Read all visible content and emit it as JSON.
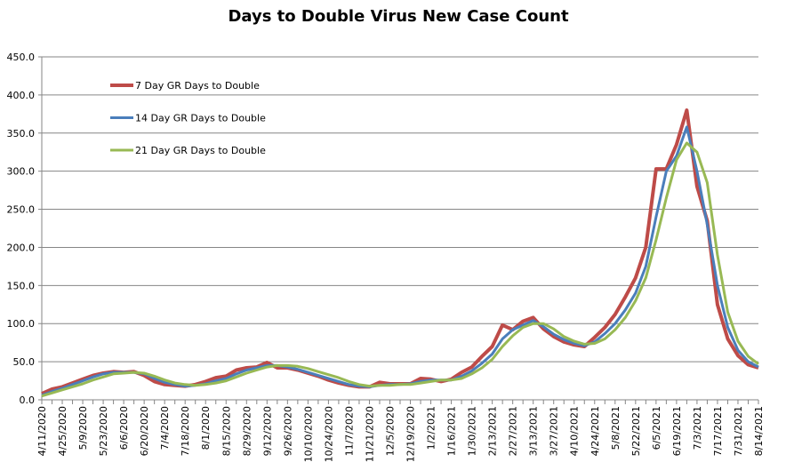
{
  "chart_data": {
    "type": "line",
    "title": "Days to Double Virus New Case Count",
    "xlabel": "",
    "ylabel": "",
    "ylim": [
      0,
      450
    ],
    "yticks": [
      "0.0",
      "50.0",
      "100.0",
      "150.0",
      "200.0",
      "250.0",
      "300.0",
      "350.0",
      "400.0",
      "450.0"
    ],
    "grid": "horizontal",
    "legend_placement": "top-left",
    "x": [
      "4/11/2020",
      "4/18/2020",
      "4/25/2020",
      "5/2/2020",
      "5/9/2020",
      "5/16/2020",
      "5/23/2020",
      "5/30/2020",
      "6/6/2020",
      "6/13/2020",
      "6/20/2020",
      "6/27/2020",
      "7/4/2020",
      "7/11/2020",
      "7/18/2020",
      "7/25/2020",
      "8/1/2020",
      "8/8/2020",
      "8/15/2020",
      "8/22/2020",
      "8/29/2020",
      "9/5/2020",
      "9/12/2020",
      "9/19/2020",
      "9/26/2020",
      "10/3/2020",
      "10/10/2020",
      "10/17/2020",
      "10/24/2020",
      "10/31/2020",
      "11/7/2020",
      "11/14/2020",
      "11/21/2020",
      "11/28/2020",
      "12/5/2020",
      "12/12/2020",
      "12/19/2020",
      "12/26/2020",
      "1/2/2021",
      "1/9/2021",
      "1/16/2021",
      "1/23/2021",
      "1/30/2021",
      "2/6/2021",
      "2/13/2021",
      "2/20/2021",
      "2/27/2021",
      "3/6/2021",
      "3/13/2021",
      "3/20/2021",
      "3/27/2021",
      "4/3/2021",
      "4/10/2021",
      "4/17/2021",
      "4/24/2021",
      "5/1/2021",
      "5/8/2021",
      "5/15/2021",
      "5/22/2021",
      "5/29/2021",
      "6/5/2021",
      "6/12/2021",
      "6/19/2021",
      "6/26/2021",
      "7/3/2021",
      "7/10/2021",
      "7/17/2021",
      "7/24/2021",
      "7/31/2021",
      "8/7/2021",
      "8/14/2021"
    ],
    "xtick_labels": [
      "4/11/2020",
      "4/25/2020",
      "5/9/2020",
      "5/23/2020",
      "6/6/2020",
      "6/20/2020",
      "7/4/2020",
      "7/18/2020",
      "8/1/2020",
      "8/15/2020",
      "8/29/2020",
      "9/12/2020",
      "9/26/2020",
      "10/10/2020",
      "10/24/2020",
      "11/7/2020",
      "11/21/2020",
      "12/5/2020",
      "12/19/2020",
      "1/2/2021",
      "1/16/2021",
      "1/30/2021",
      "2/13/2021",
      "2/27/2021",
      "3/13/2021",
      "3/27/2021",
      "4/10/2021",
      "4/24/2021",
      "5/8/2021",
      "5/22/2021",
      "6/5/2021",
      "6/19/2021",
      "7/3/2021",
      "7/17/2021",
      "7/31/2021",
      "8/14/2021"
    ],
    "series": [
      {
        "name": "7 Day GR Days to Double",
        "color": "#be4b48",
        "values": [
          8,
          14,
          17,
          22,
          27,
          32,
          35,
          37,
          36,
          37,
          32,
          24,
          20,
          19,
          18,
          20,
          24,
          29,
          31,
          39,
          42,
          43,
          49,
          42,
          42,
          39,
          35,
          31,
          26,
          22,
          19,
          17,
          17,
          23,
          21,
          21,
          21,
          28,
          27,
          24,
          27,
          36,
          43,
          57,
          70,
          98,
          92,
          103,
          108,
          93,
          83,
          76,
          72,
          70,
          82,
          95,
          112,
          135,
          160,
          200,
          303,
          303,
          335,
          380,
          280,
          235,
          125,
          80,
          58,
          46,
          42
        ]
      },
      {
        "name": "14 Day GR Days to Double",
        "color": "#4a7ebb",
        "values": [
          6,
          11,
          15,
          20,
          25,
          30,
          34,
          36,
          36,
          36,
          34,
          28,
          23,
          20,
          18,
          19,
          21,
          25,
          28,
          34,
          39,
          42,
          45,
          45,
          43,
          40,
          36,
          32,
          28,
          24,
          20,
          18,
          17,
          19,
          20,
          20,
          21,
          24,
          26,
          26,
          26,
          31,
          38,
          48,
          60,
          80,
          92,
          98,
          104,
          96,
          86,
          79,
          74,
          71,
          76,
          87,
          100,
          118,
          140,
          175,
          240,
          300,
          320,
          358,
          300,
          230,
          150,
          95,
          65,
          50,
          43
        ]
      },
      {
        "name": "21 Day GR Days to Double",
        "color": "#98b954",
        "values": [
          5,
          9,
          13,
          17,
          21,
          26,
          30,
          34,
          35,
          36,
          35,
          31,
          26,
          22,
          20,
          19,
          20,
          22,
          25,
          30,
          35,
          39,
          43,
          45,
          45,
          44,
          41,
          37,
          33,
          29,
          24,
          20,
          18,
          19,
          19,
          20,
          20,
          22,
          24,
          26,
          26,
          28,
          34,
          42,
          53,
          70,
          84,
          95,
          100,
          100,
          93,
          83,
          77,
          73,
          74,
          80,
          92,
          108,
          130,
          160,
          210,
          265,
          315,
          337,
          325,
          285,
          190,
          115,
          77,
          57,
          47
        ]
      }
    ]
  }
}
